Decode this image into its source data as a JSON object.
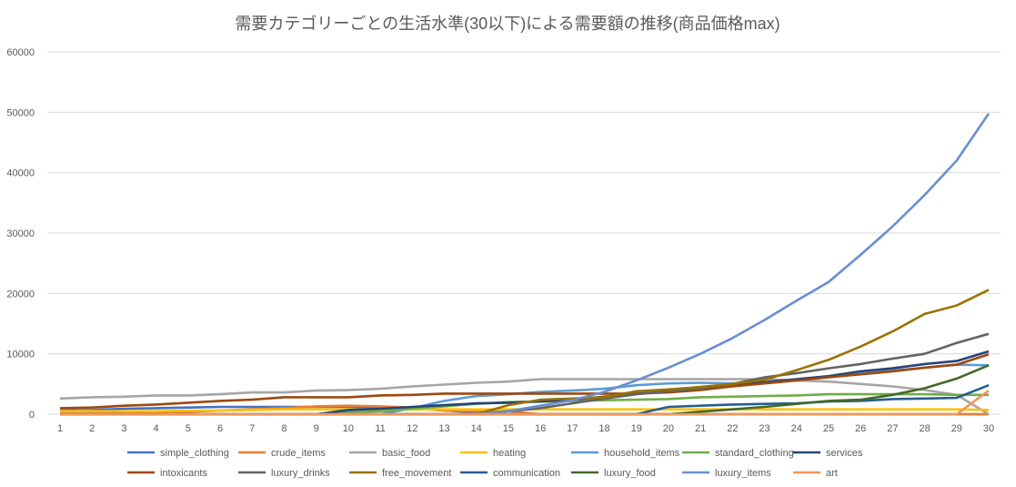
{
  "chart_data": {
    "type": "line",
    "title": "需要カテゴリーごとの生活水準(30以下)による需要額の推移(商品価格max)",
    "xlabel": "",
    "ylabel": "",
    "ylim": [
      0,
      60000
    ],
    "yticks": [
      0,
      10000,
      20000,
      30000,
      40000,
      50000,
      60000
    ],
    "grid": true,
    "legend_position": "bottom",
    "x": [
      1,
      2,
      3,
      4,
      5,
      6,
      7,
      8,
      9,
      10,
      11,
      12,
      13,
      14,
      15,
      16,
      17,
      18,
      19,
      20,
      21,
      22,
      23,
      24,
      25,
      26,
      27,
      28,
      29,
      30
    ],
    "series": [
      {
        "name": "simple_clothing",
        "color": "#4472C4",
        "values": [
          600,
          700,
          900,
          1000,
          1100,
          1200,
          1200,
          1200,
          1200,
          1200,
          1100,
          1000,
          600,
          300,
          0,
          0,
          0,
          0,
          0,
          0,
          0,
          0,
          0,
          0,
          0,
          0,
          0,
          0,
          0,
          0
        ]
      },
      {
        "name": "crude_items",
        "color": "#ED7D31",
        "values": [
          200,
          200,
          200,
          200,
          400,
          600,
          800,
          1000,
          1300,
          1400,
          1300,
          1100,
          600,
          500,
          500,
          0,
          0,
          0,
          0,
          0,
          0,
          0,
          0,
          0,
          0,
          0,
          0,
          0,
          0,
          0
        ]
      },
      {
        "name": "basic_food",
        "color": "#A5A5A5",
        "values": [
          2600,
          2800,
          2900,
          3100,
          3100,
          3300,
          3600,
          3600,
          3900,
          4000,
          4200,
          4600,
          4900,
          5200,
          5400,
          5800,
          5800,
          5800,
          5800,
          5800,
          5800,
          5800,
          5800,
          5600,
          5400,
          5000,
          4600,
          4000,
          3200,
          0
        ]
      },
      {
        "name": "heating",
        "color": "#FFC000",
        "values": [
          500,
          500,
          500,
          500,
          600,
          600,
          700,
          800,
          800,
          800,
          800,
          800,
          800,
          800,
          800,
          800,
          800,
          800,
          800,
          800,
          800,
          800,
          800,
          800,
          800,
          800,
          800,
          800,
          800,
          700
        ]
      },
      {
        "name": "household_items",
        "color": "#5B9BD5",
        "values": [
          0,
          0,
          0,
          0,
          0,
          0,
          0,
          0,
          0,
          0,
          0,
          1000,
          2200,
          3000,
          3300,
          3700,
          3900,
          4200,
          4800,
          5100,
          5200,
          5100,
          5200,
          5700,
          6200,
          6700,
          7200,
          7700,
          8200,
          8100
        ]
      },
      {
        "name": "standard_clothing",
        "color": "#70AD47",
        "values": [
          0,
          0,
          0,
          0,
          0,
          0,
          0,
          0,
          0,
          300,
          500,
          900,
          1300,
          1700,
          2000,
          2100,
          2200,
          2300,
          2400,
          2500,
          2800,
          2900,
          3000,
          3100,
          3300,
          3300,
          3300,
          3300,
          3200,
          3200
        ]
      },
      {
        "name": "services",
        "color": "#264478",
        "values": [
          0,
          0,
          0,
          0,
          0,
          0,
          0,
          0,
          0,
          700,
          900,
          1200,
          1500,
          1800,
          1900,
          2100,
          2400,
          2900,
          3400,
          3700,
          4200,
          4700,
          5300,
          5800,
          6300,
          7100,
          7600,
          8300,
          8800,
          10400
        ]
      },
      {
        "name": "intoxicants",
        "color": "#9E480E",
        "values": [
          1000,
          1100,
          1400,
          1600,
          1900,
          2200,
          2400,
          2800,
          2800,
          2800,
          3100,
          3200,
          3400,
          3400,
          3400,
          3400,
          3400,
          3400,
          3400,
          3600,
          4000,
          4600,
          5100,
          5600,
          6100,
          6600,
          7100,
          7700,
          8200,
          9900
        ]
      },
      {
        "name": "luxury_drinks",
        "color": "#636363",
        "values": [
          0,
          0,
          0,
          0,
          0,
          0,
          0,
          0,
          0,
          0,
          0,
          0,
          0,
          0,
          500,
          1000,
          1800,
          2600,
          3300,
          3800,
          4300,
          5000,
          6100,
          6800,
          7600,
          8300,
          9200,
          10000,
          11800,
          13300
        ]
      },
      {
        "name": "free_movement",
        "color": "#997300",
        "values": [
          0,
          0,
          0,
          0,
          0,
          0,
          0,
          0,
          0,
          0,
          0,
          0,
          0,
          0,
          1500,
          2400,
          2600,
          2800,
          3800,
          4100,
          4500,
          5000,
          5700,
          7300,
          9000,
          11200,
          13700,
          16600,
          18000,
          20600
        ]
      },
      {
        "name": "communication",
        "color": "#255E91",
        "values": [
          0,
          0,
          0,
          0,
          0,
          0,
          0,
          0,
          0,
          0,
          0,
          0,
          0,
          0,
          0,
          0,
          0,
          0,
          0,
          1200,
          1400,
          1600,
          1700,
          1800,
          2100,
          2200,
          2500,
          2600,
          2700,
          4800
        ]
      },
      {
        "name": "luxury_food",
        "color": "#43682B",
        "values": [
          0,
          0,
          0,
          0,
          0,
          0,
          0,
          0,
          0,
          0,
          0,
          0,
          0,
          0,
          0,
          0,
          0,
          0,
          0,
          0,
          400,
          800,
          1200,
          1700,
          2200,
          2400,
          3200,
          4300,
          5900,
          8100
        ]
      },
      {
        "name": "luxury_items",
        "color": "#698ED0",
        "values": [
          0,
          0,
          0,
          0,
          0,
          0,
          0,
          0,
          0,
          0,
          0,
          0,
          0,
          0,
          500,
          1400,
          2300,
          3700,
          5600,
          7700,
          10000,
          12600,
          15600,
          18800,
          21900,
          26400,
          31100,
          36300,
          42000,
          49800
        ]
      },
      {
        "name": "art",
        "color": "#F1975A",
        "values": [
          0,
          0,
          0,
          0,
          0,
          0,
          0,
          0,
          0,
          0,
          0,
          0,
          0,
          0,
          0,
          0,
          0,
          0,
          0,
          0,
          0,
          0,
          0,
          0,
          0,
          0,
          0,
          0,
          0,
          3900
        ]
      }
    ]
  }
}
